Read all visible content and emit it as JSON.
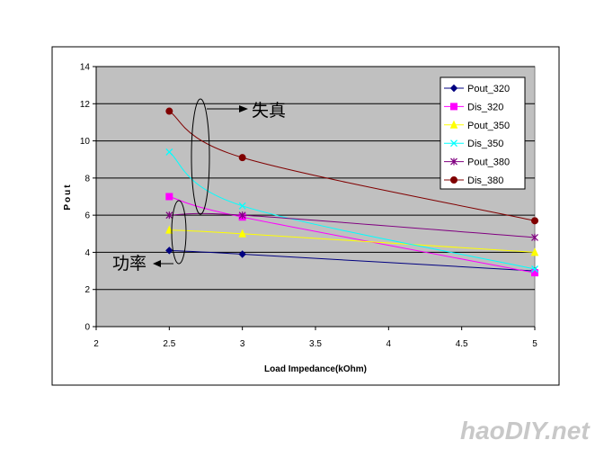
{
  "chart_data": {
    "type": "line",
    "title": "",
    "xlabel": "Load Impedance(kOhm)",
    "ylabel": "Pout",
    "xlim": [
      2,
      5
    ],
    "ylim": [
      0,
      14
    ],
    "x_ticks": [
      "2",
      "2.5",
      "3",
      "3.5",
      "4",
      "4.5",
      "5"
    ],
    "y_ticks": [
      "0",
      "2",
      "4",
      "6",
      "8",
      "10",
      "12",
      "14"
    ],
    "x": [
      2.5,
      3,
      5
    ],
    "grid": "horizontal",
    "plot_background": "#c0c0c0",
    "legend_position": "top-right",
    "series": [
      {
        "name": "Pout_320",
        "values": [
          4.1,
          3.9,
          3.0
        ],
        "color": "#000080",
        "marker": "diamond"
      },
      {
        "name": "Dis_320",
        "values": [
          7.0,
          5.9,
          2.9
        ],
        "color": "#ff00ff",
        "marker": "square"
      },
      {
        "name": "Pout_350",
        "values": [
          5.2,
          5.0,
          4.0
        ],
        "color": "#ffff00",
        "marker": "triangle"
      },
      {
        "name": "Dis_350",
        "values": [
          9.4,
          6.5,
          3.1
        ],
        "color": "#00ffff",
        "marker": "x"
      },
      {
        "name": "Pout_380",
        "values": [
          6.0,
          6.0,
          4.8
        ],
        "color": "#800080",
        "marker": "star"
      },
      {
        "name": "Dis_380",
        "values": [
          11.6,
          9.1,
          5.7
        ],
        "color": "#800000",
        "marker": "circle"
      }
    ],
    "annotations": [
      "失真",
      "功率"
    ]
  },
  "watermark": "haoDIY.net"
}
